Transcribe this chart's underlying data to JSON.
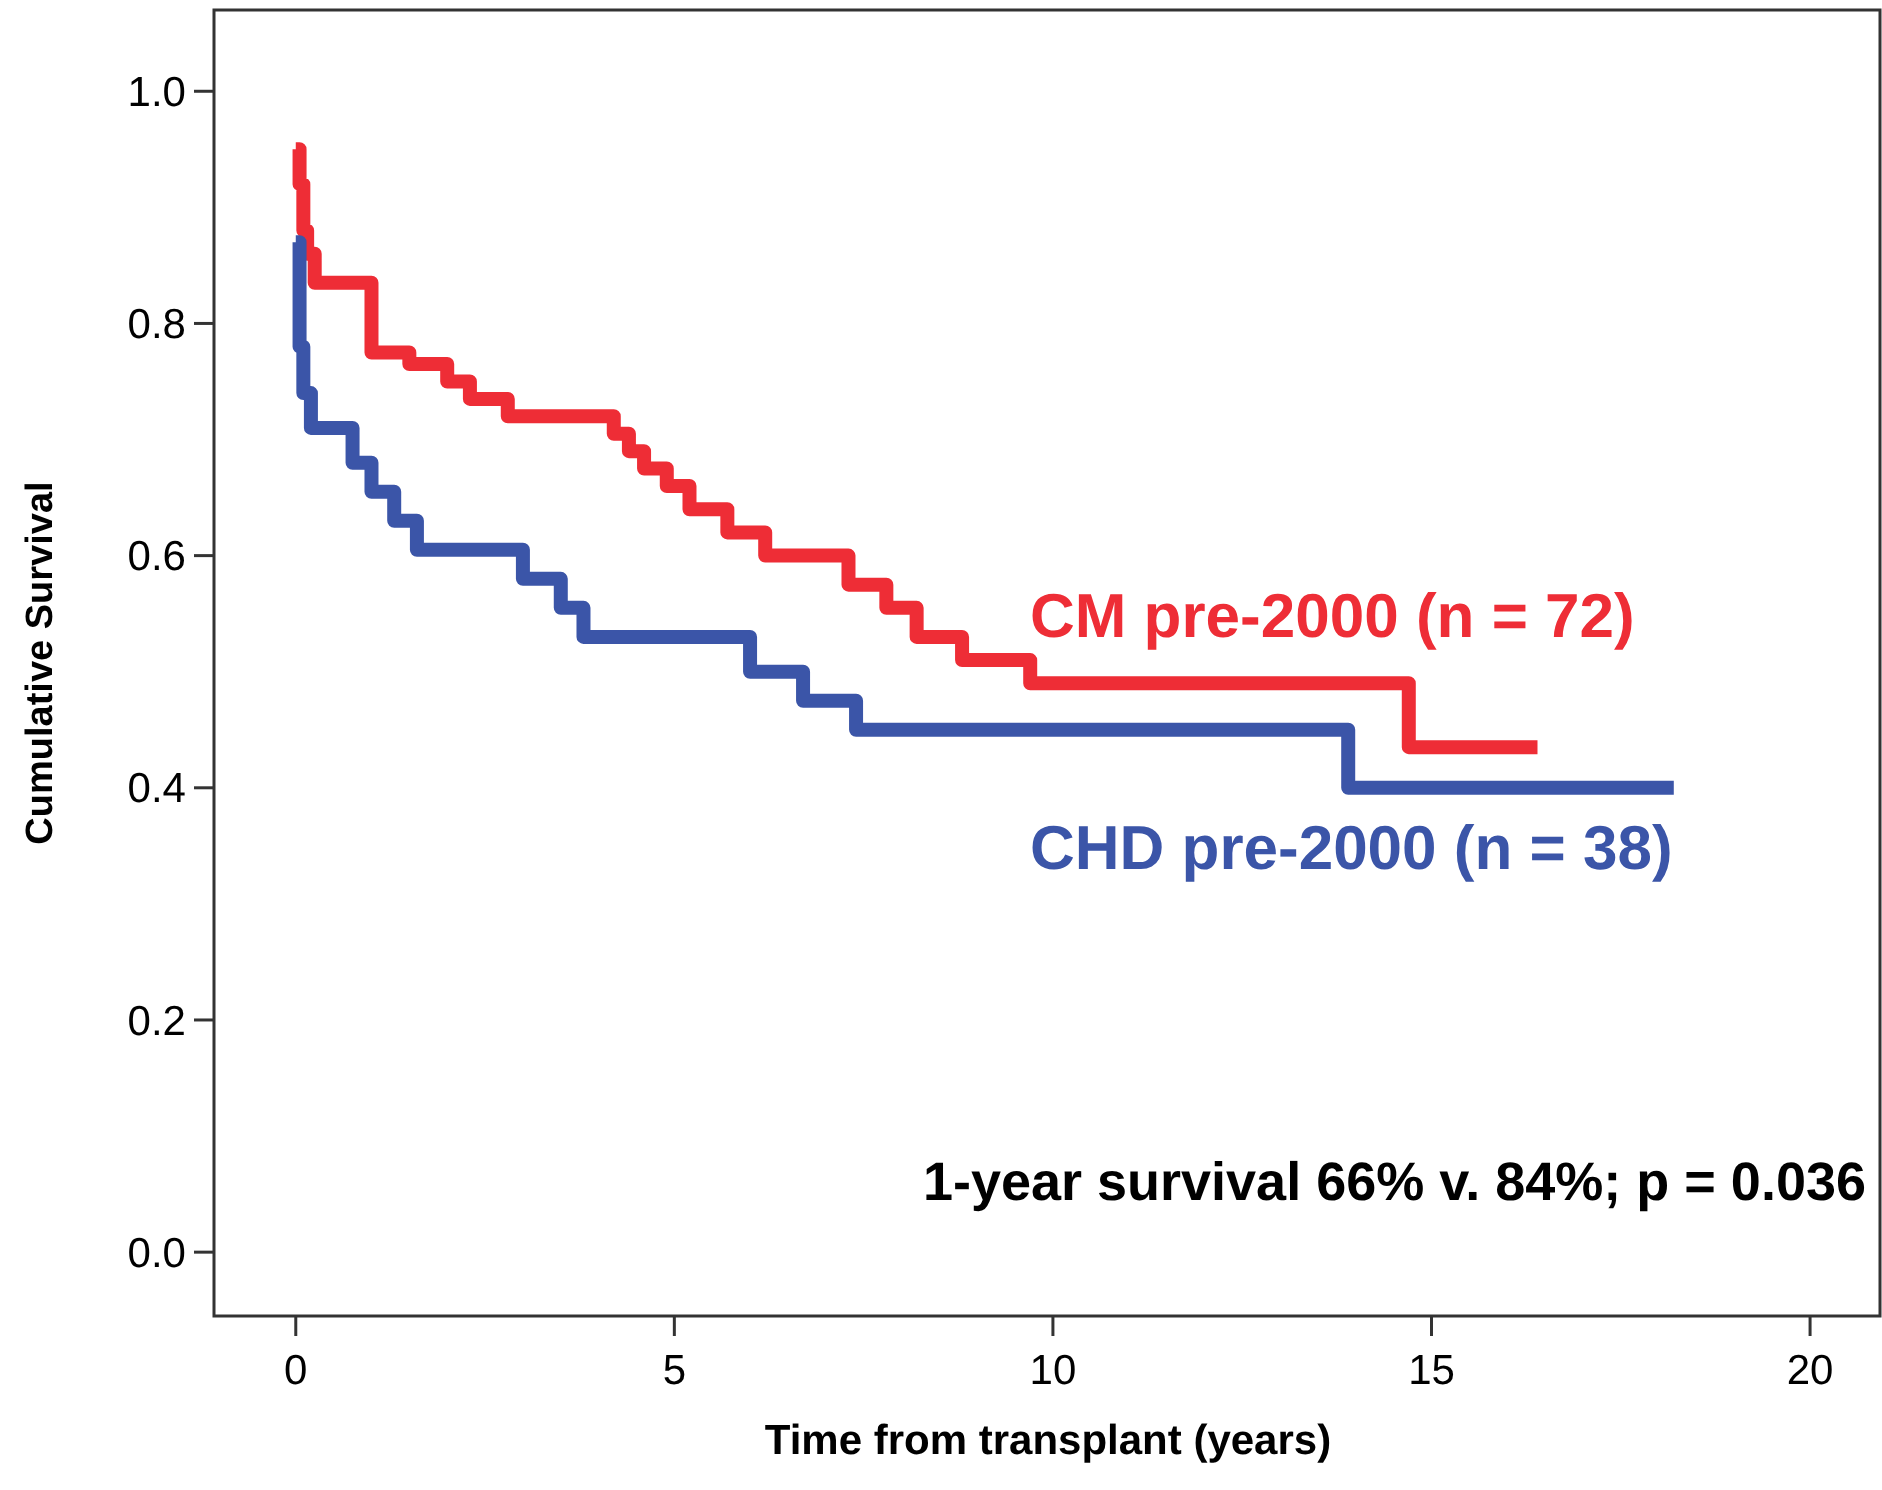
{
  "chart_data": {
    "type": "step",
    "xlabel": "Time from transplant (years)",
    "ylabel": "Cumulative Survival",
    "xlim": [
      -1.08,
      20.95
    ],
    "xticks": [
      0,
      5,
      10,
      15,
      20
    ],
    "ylim": [
      -0.055,
      1.07
    ],
    "yticks": [
      {
        "value": 0,
        "label": "0.0"
      },
      {
        "value": 0.2,
        "label": "0.2"
      },
      {
        "value": 0.4,
        "label": "0.4"
      },
      {
        "value": 0.6,
        "label": "0.6"
      },
      {
        "value": 0.8,
        "label": "0.8"
      },
      {
        "value": 1,
        "label": "1.0"
      }
    ],
    "grid": false,
    "marker": "none",
    "line_style": "solid",
    "series": [
      {
        "name": "CM pre-2000 (n = 72)",
        "color": "#ee2d36",
        "x": [
          0,
          0.05,
          0.1,
          0.15,
          0.25,
          1.0,
          1.5,
          2.0,
          2.3,
          2.8,
          4.2,
          4.4,
          4.6,
          4.9,
          5.2,
          5.7,
          6.2,
          7.3,
          7.8,
          8.2,
          8.8,
          9.7,
          14.7,
          16.4
        ],
        "values": [
          0.95,
          0.92,
          0.88,
          0.86,
          0.835,
          0.775,
          0.765,
          0.75,
          0.735,
          0.72,
          0.705,
          0.69,
          0.675,
          0.66,
          0.64,
          0.62,
          0.6,
          0.575,
          0.555,
          0.53,
          0.51,
          0.49,
          0.435,
          0.435
        ]
      },
      {
        "name": "CHD pre-2000 (n = 38)",
        "color": "#3b55a8",
        "x": [
          0,
          0.05,
          0.1,
          0.2,
          0.75,
          1.0,
          1.3,
          1.6,
          3.0,
          3.5,
          3.8,
          6.0,
          6.7,
          7.4,
          13.9,
          18.2
        ],
        "values": [
          0.87,
          0.78,
          0.74,
          0.71,
          0.68,
          0.655,
          0.63,
          0.605,
          0.58,
          0.555,
          0.53,
          0.5,
          0.475,
          0.45,
          0.4,
          0.4
        ]
      }
    ],
    "annotations": [
      "1-year survival 66% v. 84%; p = 0.036"
    ]
  }
}
